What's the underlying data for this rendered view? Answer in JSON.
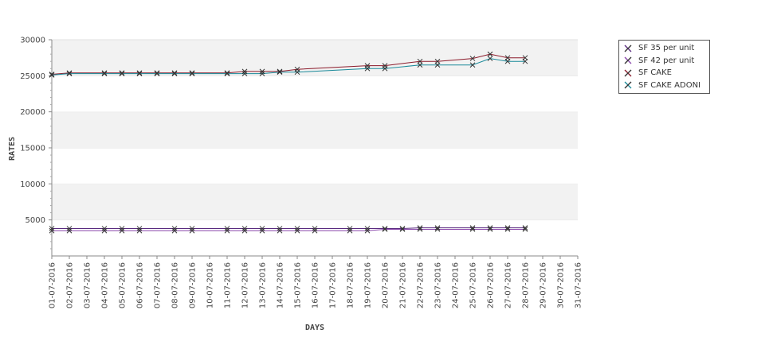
{
  "chart_data": {
    "type": "line",
    "xlabel": "DAYS",
    "ylabel": "RATES",
    "ylim": [
      0,
      30000
    ],
    "yticks": [
      5000,
      10000,
      15000,
      20000,
      25000,
      30000
    ],
    "categories": [
      "01-07-2016",
      "02-07-2016",
      "03-07-2016",
      "04-07-2016",
      "05-07-2016",
      "06-07-2016",
      "07-07-2016",
      "08-07-2016",
      "09-07-2016",
      "10-07-2016",
      "11-07-2016",
      "12-07-2016",
      "13-07-2016",
      "14-07-2016",
      "15-07-2016",
      "16-07-2016",
      "17-07-2016",
      "18-07-2016",
      "19-07-2016",
      "20-07-2016",
      "21-07-2016",
      "22-07-2016",
      "23-07-2016",
      "24-07-2016",
      "25-07-2016",
      "26-07-2016",
      "27-07-2016",
      "28-07-2016",
      "29-07-2016",
      "30-07-2016",
      "31-07-2016"
    ],
    "grid": "alternating horizontal bands",
    "legend_position": "right",
    "series": [
      {
        "name": "SF 35 per unit",
        "color": "#5a2a80",
        "points": [
          [
            1,
            3800
          ],
          [
            2,
            3800
          ],
          [
            4,
            3800
          ],
          [
            5,
            3800
          ],
          [
            6,
            3800
          ],
          [
            8,
            3800
          ],
          [
            9,
            3800
          ],
          [
            11,
            3800
          ],
          [
            12,
            3800
          ],
          [
            13,
            3800
          ],
          [
            14,
            3800
          ],
          [
            15,
            3800
          ],
          [
            16,
            3800
          ],
          [
            18,
            3800
          ],
          [
            19,
            3800
          ],
          [
            20,
            3800
          ],
          [
            21,
            3800
          ],
          [
            22,
            3900
          ],
          [
            23,
            3900
          ],
          [
            25,
            3900
          ],
          [
            26,
            3900
          ],
          [
            27,
            3900
          ],
          [
            28,
            3900
          ]
        ]
      },
      {
        "name": "SF 42 per unit",
        "color": "#8844aa",
        "points": [
          [
            1,
            3500
          ],
          [
            2,
            3500
          ],
          [
            4,
            3500
          ],
          [
            5,
            3500
          ],
          [
            6,
            3500
          ],
          [
            8,
            3500
          ],
          [
            9,
            3500
          ],
          [
            11,
            3500
          ],
          [
            12,
            3500
          ],
          [
            13,
            3500
          ],
          [
            14,
            3500
          ],
          [
            15,
            3500
          ],
          [
            16,
            3500
          ],
          [
            18,
            3500
          ],
          [
            19,
            3500
          ],
          [
            20,
            3700
          ],
          [
            21,
            3700
          ],
          [
            22,
            3700
          ],
          [
            23,
            3700
          ],
          [
            25,
            3700
          ],
          [
            26,
            3700
          ],
          [
            27,
            3700
          ],
          [
            28,
            3700
          ]
        ]
      },
      {
        "name": "SF CAKE",
        "color": "#8b1a2a",
        "points": [
          [
            1,
            25200
          ],
          [
            2,
            25400
          ],
          [
            4,
            25400
          ],
          [
            5,
            25400
          ],
          [
            6,
            25400
          ],
          [
            7,
            25400
          ],
          [
            8,
            25400
          ],
          [
            9,
            25400
          ],
          [
            11,
            25400
          ],
          [
            12,
            25600
          ],
          [
            13,
            25600
          ],
          [
            14,
            25600
          ],
          [
            15,
            25900
          ],
          [
            19,
            26400
          ],
          [
            20,
            26400
          ],
          [
            22,
            27000
          ],
          [
            23,
            27000
          ],
          [
            25,
            27400
          ],
          [
            26,
            28000
          ],
          [
            27,
            27500
          ],
          [
            28,
            27500
          ]
        ]
      },
      {
        "name": "SF CAKE ADONI",
        "color": "#1a8a9a",
        "points": [
          [
            1,
            25100
          ],
          [
            2,
            25300
          ],
          [
            4,
            25300
          ],
          [
            5,
            25300
          ],
          [
            6,
            25300
          ],
          [
            7,
            25300
          ],
          [
            8,
            25300
          ],
          [
            9,
            25300
          ],
          [
            11,
            25300
          ],
          [
            12,
            25300
          ],
          [
            13,
            25300
          ],
          [
            14,
            25500
          ],
          [
            15,
            25500
          ],
          [
            19,
            26000
          ],
          [
            20,
            26000
          ],
          [
            22,
            26500
          ],
          [
            23,
            26500
          ],
          [
            25,
            26500
          ],
          [
            26,
            27400
          ],
          [
            27,
            27000
          ],
          [
            28,
            27000
          ]
        ]
      }
    ]
  }
}
